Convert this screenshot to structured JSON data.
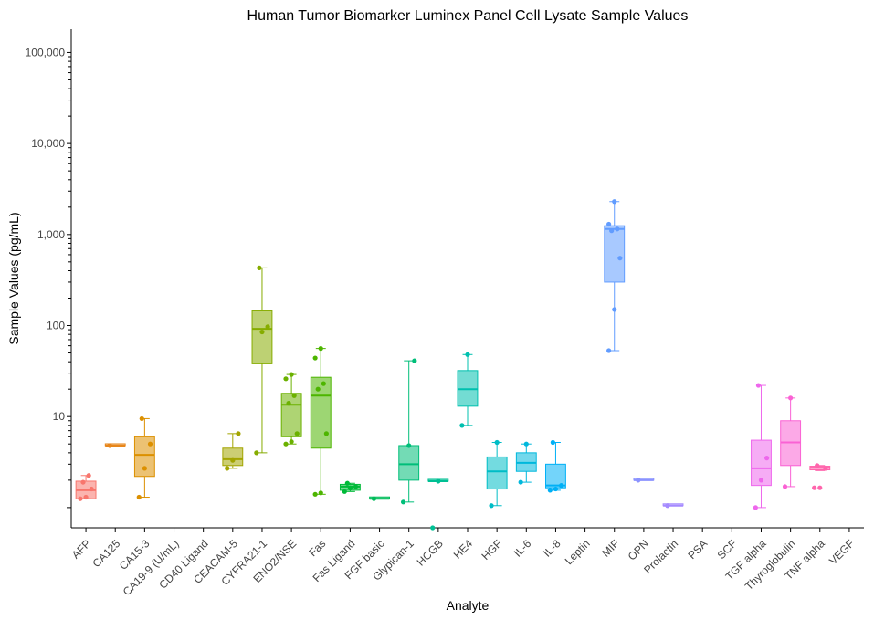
{
  "chart_data": {
    "type": "box",
    "title": "Human Tumor Biomarker Luminex Panel Cell Lysate Sample Values",
    "xlabel": "Analyte",
    "ylabel": "Sample Values (pg/mL)",
    "yscale": "log",
    "ylim": [
      0.6,
      180000
    ],
    "yticks": [
      10,
      100,
      1000,
      10000,
      100000
    ],
    "ytick_labels": [
      "10",
      "100",
      "1,000",
      "10,000",
      "100,000"
    ],
    "categories": [
      "AFP",
      "CA125",
      "CA15-3",
      "CA19-9 (U/mL)",
      "CD40 Ligand",
      "CEACAM-5",
      "CYFRA21-1",
      "ENO2/NSE",
      "Fas",
      "Fas Ligand",
      "FGF basic",
      "Glypican-1",
      "HCGB",
      "HE4",
      "HGF",
      "IL-6",
      "IL-8",
      "Leptin",
      "MIF",
      "OPN",
      "Prolactin",
      "PSA",
      "SCF",
      "TGF alpha",
      "Thyroglobulin",
      "TNF alpha",
      "VEGF"
    ],
    "series": [
      {
        "category": "AFP",
        "color": "#f8766d",
        "q1": 1.25,
        "median": 1.55,
        "q3": 1.95,
        "whisker_low": 1.25,
        "whisker_high": 2.25,
        "points": [
          1.25,
          1.3,
          1.6,
          1.9,
          2.25
        ]
      },
      {
        "category": "CA125",
        "color": "#e7861b",
        "q1": 4.8,
        "median": 4.8,
        "q3": 4.8,
        "whisker_low": 4.8,
        "whisker_high": 4.8,
        "points": [
          4.8
        ]
      },
      {
        "category": "CA15-3",
        "color": "#dc9000",
        "q1": 2.2,
        "median": 3.8,
        "q3": 6.0,
        "whisker_low": 1.3,
        "whisker_high": 9.5,
        "points": [
          1.3,
          2.7,
          5.0,
          9.5
        ]
      },
      {
        "category": "CA19-9 (U/mL)",
        "color": "#c99800",
        "points": []
      },
      {
        "category": "CD40 Ligand",
        "color": "#b6a000",
        "points": []
      },
      {
        "category": "CEACAM-5",
        "color": "#a3a500",
        "q1": 2.9,
        "median": 3.4,
        "q3": 4.5,
        "whisker_low": 2.7,
        "whisker_high": 6.5,
        "points": [
          2.7,
          3.3,
          6.5
        ]
      },
      {
        "category": "CYFRA21-1",
        "color": "#86ac00",
        "q1": 38,
        "median": 92,
        "q3": 145,
        "whisker_low": 4.0,
        "whisker_high": 430,
        "points": [
          4.0,
          85,
          97,
          430
        ]
      },
      {
        "category": "ENO2/NSE",
        "color": "#6bb100",
        "q1": 6.0,
        "median": 13.5,
        "q3": 18,
        "whisker_low": 5.0,
        "whisker_high": 29,
        "points": [
          5.0,
          5.3,
          6.5,
          14,
          17,
          26,
          29
        ]
      },
      {
        "category": "Fas",
        "color": "#4db500",
        "q1": 4.5,
        "median": 17,
        "q3": 27,
        "whisker_low": 1.4,
        "whisker_high": 56,
        "points": [
          1.4,
          1.45,
          6.5,
          20,
          23,
          44,
          56
        ]
      },
      {
        "category": "Fas Ligand",
        "color": "#00ba38",
        "q1": 1.55,
        "median": 1.7,
        "q3": 1.8,
        "whisker_low": 1.5,
        "whisker_high": 1.85,
        "points": [
          1.5,
          1.65,
          1.7,
          1.85
        ]
      },
      {
        "category": "FGF basic",
        "color": "#00bc5a",
        "q1": 1.25,
        "median": 1.25,
        "q3": 1.25,
        "whisker_low": 1.25,
        "whisker_high": 1.25,
        "points": [
          1.25
        ]
      },
      {
        "category": "Glypican-1",
        "color": "#00be79",
        "q1": 2.0,
        "median": 3.0,
        "q3": 4.8,
        "whisker_low": 1.15,
        "whisker_high": 41,
        "points": [
          1.15,
          4.8,
          41
        ]
      },
      {
        "category": "HCGB",
        "color": "#00c094",
        "q1": 1.95,
        "median": 1.95,
        "q3": 1.95,
        "whisker_low": 1.95,
        "whisker_high": 1.95,
        "points": [
          0.6,
          1.95
        ]
      },
      {
        "category": "HE4",
        "color": "#00c0af",
        "q1": 13,
        "median": 20,
        "q3": 32,
        "whisker_low": 8.0,
        "whisker_high": 48,
        "points": [
          8.0,
          48
        ]
      },
      {
        "category": "HGF",
        "color": "#00bdc6",
        "q1": 1.6,
        "median": 2.5,
        "q3": 3.6,
        "whisker_low": 1.05,
        "whisker_high": 5.2,
        "points": [
          1.05,
          5.2
        ]
      },
      {
        "category": "IL-6",
        "color": "#00b8dc",
        "q1": 2.5,
        "median": 3.1,
        "q3": 4.0,
        "whisker_low": 1.9,
        "whisker_high": 5.0,
        "points": [
          1.9,
          5.0
        ]
      },
      {
        "category": "IL-8",
        "color": "#00b0f6",
        "q1": 1.65,
        "median": 1.75,
        "q3": 3.0,
        "whisker_low": 1.55,
        "whisker_high": 5.2,
        "points": [
          1.55,
          1.6,
          1.75,
          5.2
        ]
      },
      {
        "category": "Leptin",
        "color": "#35a2ff",
        "points": []
      },
      {
        "category": "MIF",
        "color": "#619cff",
        "q1": 300,
        "median": 1150,
        "q3": 1250,
        "whisker_low": 53,
        "whisker_high": 2300,
        "points": [
          53,
          150,
          550,
          1100,
          1150,
          1300,
          2300
        ]
      },
      {
        "category": "OPN",
        "color": "#8b93ff",
        "q1": 2.0,
        "median": 2.0,
        "q3": 2.0,
        "whisker_low": 2.0,
        "whisker_high": 2.0,
        "points": [
          2.0
        ]
      },
      {
        "category": "Prolactin",
        "color": "#a58aff",
        "q1": 1.05,
        "median": 1.05,
        "q3": 1.05,
        "whisker_low": 1.05,
        "whisker_high": 1.05,
        "points": [
          1.05
        ]
      },
      {
        "category": "PSA",
        "color": "#c77cff",
        "points": []
      },
      {
        "category": "SCF",
        "color": "#dd71fa",
        "points": []
      },
      {
        "category": "TGF alpha",
        "color": "#ee67ec",
        "q1": 1.75,
        "median": 2.7,
        "q3": 5.5,
        "whisker_low": 1.0,
        "whisker_high": 22,
        "points": [
          1.0,
          2.0,
          3.5,
          22
        ]
      },
      {
        "category": "Thyroglobulin",
        "color": "#fa62d4",
        "q1": 2.9,
        "median": 5.2,
        "q3": 9.0,
        "whisker_low": 1.7,
        "whisker_high": 16,
        "points": [
          1.7,
          16
        ]
      },
      {
        "category": "TNF alpha",
        "color": "#ff65ac",
        "q1": 2.6,
        "median": 2.75,
        "q3": 2.85,
        "whisker_low": 2.55,
        "whisker_high": 2.9,
        "points": [
          1.65,
          1.65,
          2.7,
          2.9
        ]
      },
      {
        "category": "VEGF",
        "color": "#ff6c91",
        "points": []
      }
    ]
  }
}
